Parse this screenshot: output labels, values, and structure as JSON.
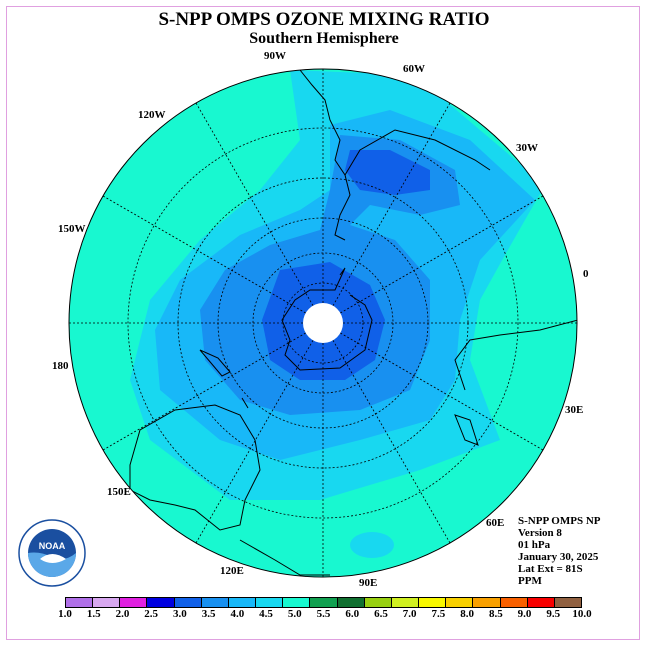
{
  "header": {
    "title": "S-NPP OMPS OZONE MIXING RATIO",
    "subtitle": "Southern Hemisphere"
  },
  "longitude_labels": [
    "90W",
    "60W",
    "30W",
    "0",
    "30E",
    "60E",
    "90E",
    "120E",
    "150E",
    "180",
    "150W",
    "120W"
  ],
  "info": {
    "instrument": "S-NPP OMPS NP",
    "version": "Version 8",
    "level": "01 hPa",
    "date": "January 30, 2025",
    "lat_ext": "Lat Ext = 81S",
    "units": "PPM"
  },
  "legend": {
    "ticks": [
      "1.0",
      "1.5",
      "2.0",
      "2.5",
      "3.0",
      "3.5",
      "4.0",
      "4.5",
      "5.0",
      "5.5",
      "6.0",
      "6.5",
      "7.0",
      "7.5",
      "8.0",
      "8.5",
      "9.0",
      "9.5",
      "10.0"
    ],
    "colors": [
      "#b070e8",
      "#d8a8f0",
      "#e020e0",
      "#0000e0",
      "#1060e8",
      "#1890f0",
      "#18b8f8",
      "#18d8f0",
      "#18f8d0",
      "#10a050",
      "#107030",
      "#98d010",
      "#d0f020",
      "#f8f800",
      "#f8d000",
      "#f8a000",
      "#f86000",
      "#f80000",
      "#906040"
    ]
  },
  "logo": {
    "text": "NOAA"
  },
  "map": {
    "hemisphere": "south",
    "background_class": "4.5-5.0 ppm",
    "contour_fills": [
      "#18f8d0",
      "#18d8f0",
      "#18b8f8",
      "#1890f0",
      "#1060e8",
      "#ffffff"
    ]
  }
}
